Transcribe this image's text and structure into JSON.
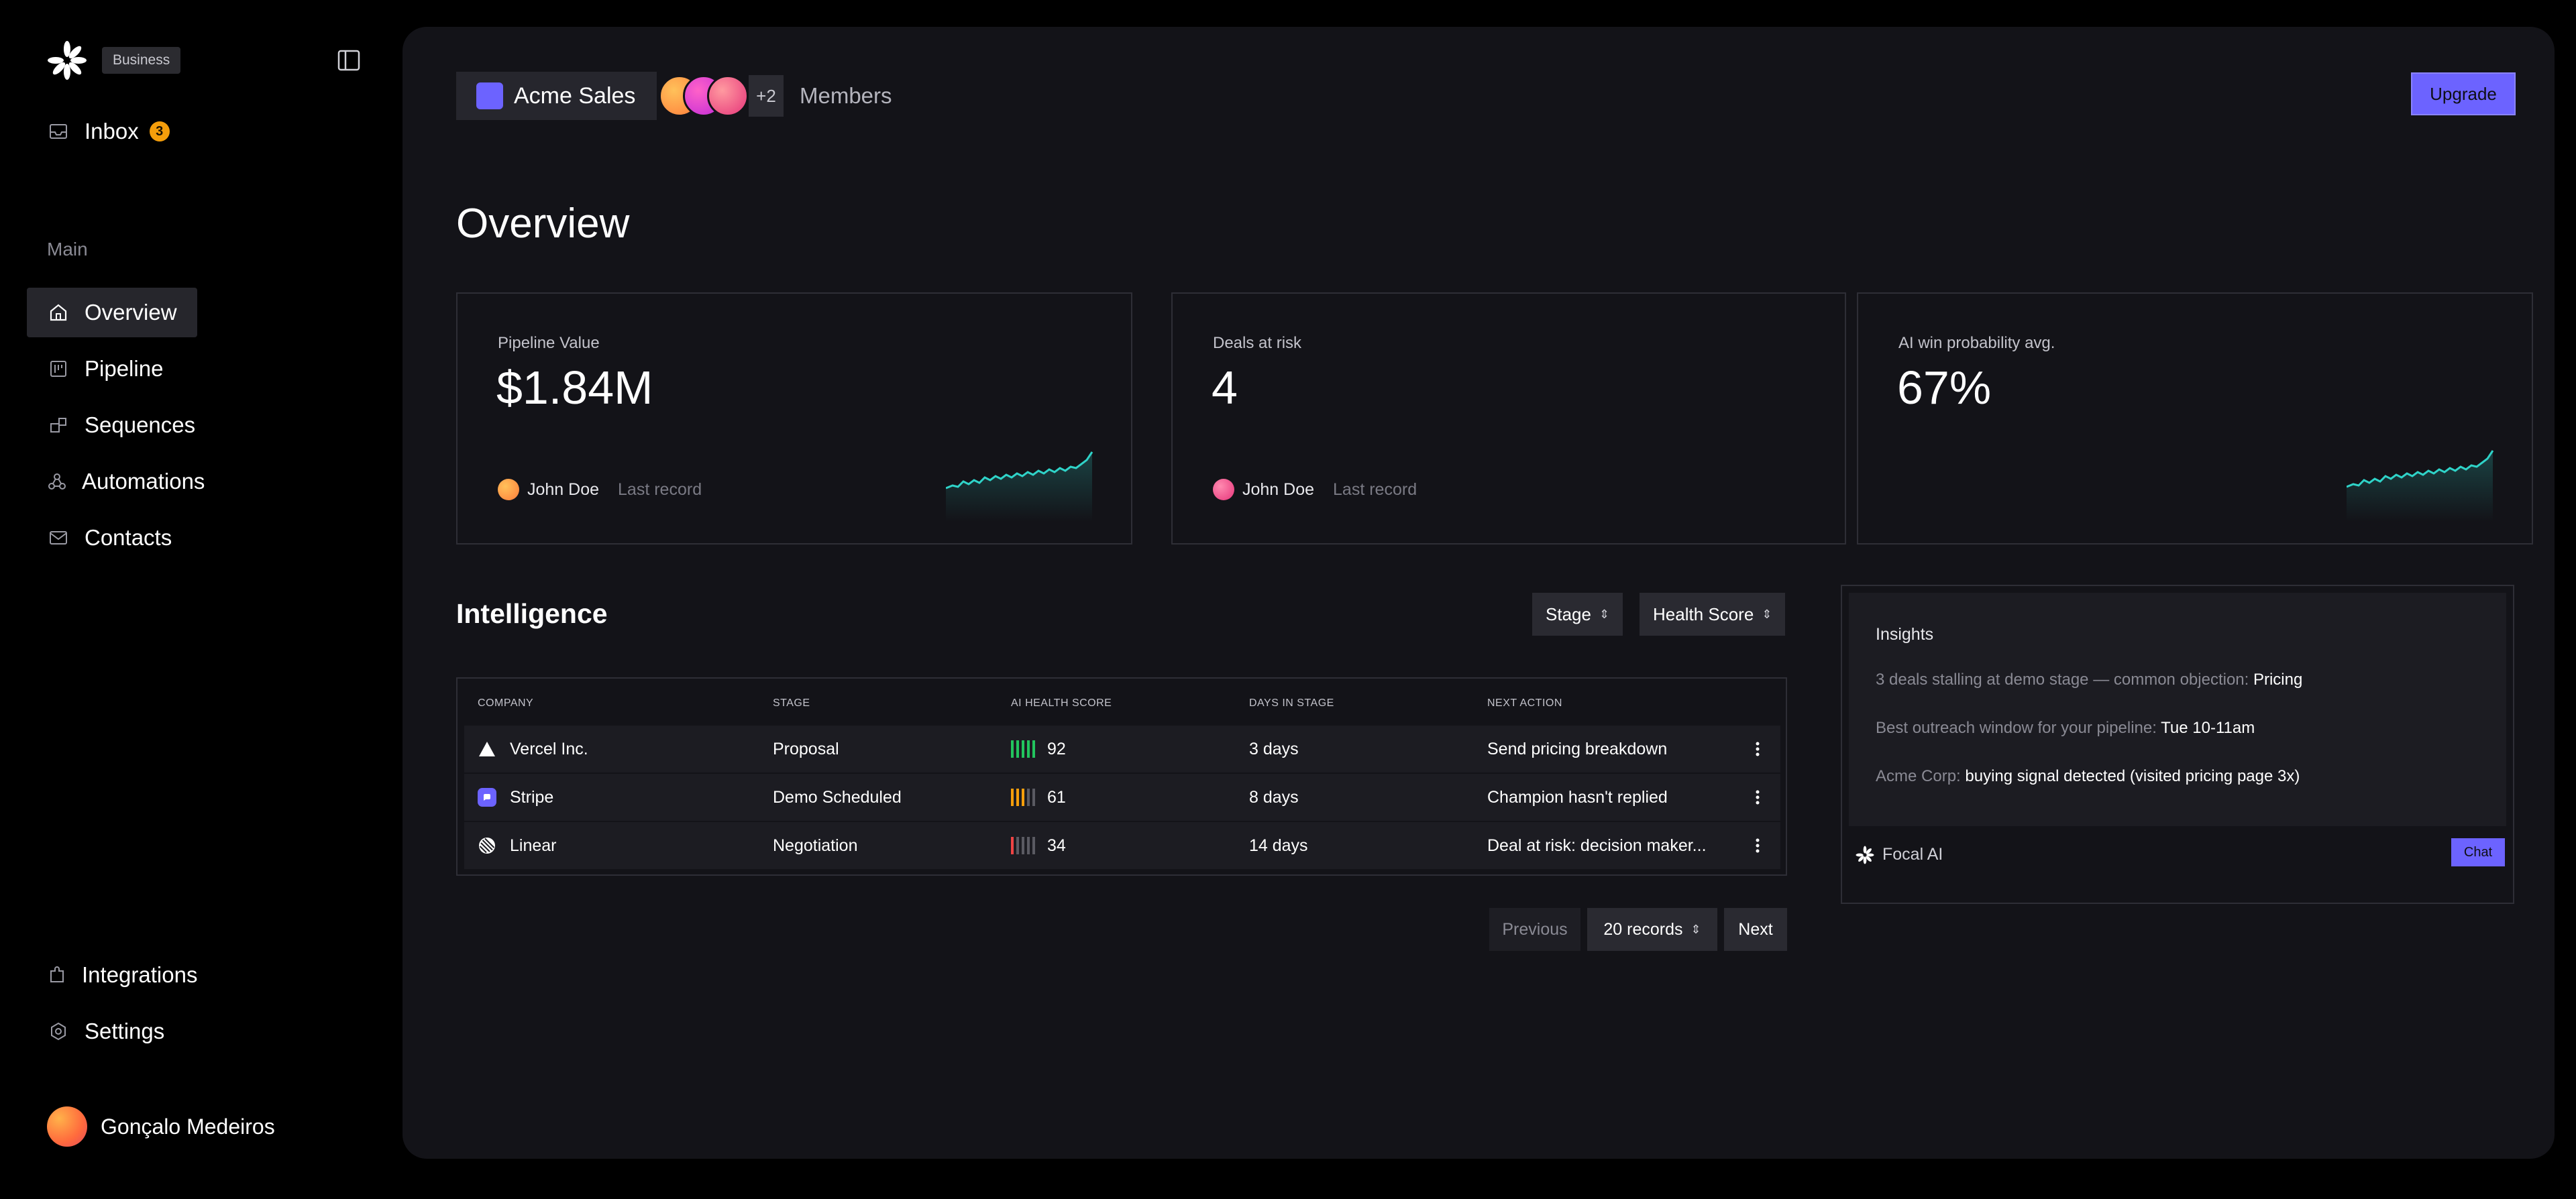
{
  "app": {
    "plan_badge": "Business",
    "brand_color": "#6c63ff",
    "accent_teal": "#2fd3c8"
  },
  "sidebar": {
    "inbox": {
      "label": "Inbox",
      "count": "3",
      "icon": "inbox-icon"
    },
    "section_label": "Main",
    "items": [
      {
        "label": "Overview",
        "icon": "home-icon",
        "active": true
      },
      {
        "label": "Pipeline",
        "icon": "pipeline-icon",
        "active": false
      },
      {
        "label": "Sequences",
        "icon": "sequences-icon",
        "active": false
      },
      {
        "label": "Automations",
        "icon": "automations-icon",
        "active": false
      },
      {
        "label": "Contacts",
        "icon": "contacts-icon",
        "active": false
      }
    ],
    "bottom_items": [
      {
        "label": "Integrations",
        "icon": "puzzle-icon"
      },
      {
        "label": "Settings",
        "icon": "settings-icon"
      }
    ],
    "user": {
      "name": "Gonçalo Medeiros"
    }
  },
  "header": {
    "workspace": "Acme Sales",
    "members_extra": "+2",
    "members_label": "Members",
    "upgrade_label": "Upgrade"
  },
  "overview": {
    "title": "Overview",
    "kpis": [
      {
        "label": "Pipeline Value",
        "value": "$1.84M",
        "owner": "John Doe",
        "meta": "Last record",
        "sparkline": true
      },
      {
        "label": "Deals at risk",
        "value": "4",
        "owner": "John Doe",
        "meta": "Last record",
        "sparkline": false
      },
      {
        "label": "AI win probability avg.",
        "value": "67%",
        "owner": "",
        "meta": "",
        "sparkline": true
      }
    ]
  },
  "intelligence": {
    "title": "Intelligence",
    "filters": {
      "stage": "Stage",
      "health": "Health Score"
    },
    "columns": [
      "COMPANY",
      "STAGE",
      "AI HEALTH SCORE",
      "DAYS IN STAGE",
      "NEXT ACTION"
    ],
    "rows": [
      {
        "company": "Vercel Inc.",
        "stage": "Proposal",
        "score": "92",
        "score_color": "#22c55e",
        "days": "3 days",
        "next_action": "Send pricing breakdown"
      },
      {
        "company": "Stripe",
        "stage": "Demo Scheduled",
        "score": "61",
        "score_color": "#f59e0b",
        "days": "8 days",
        "next_action": "Champion hasn't replied"
      },
      {
        "company": "Linear",
        "stage": "Negotiation",
        "score": "34",
        "score_color": "#ef4444",
        "days": "14 days",
        "next_action": "Deal at risk: decision maker..."
      }
    ],
    "pager": {
      "previous": "Previous",
      "records": "20 records",
      "next": "Next"
    }
  },
  "insights": {
    "title": "Insights",
    "lines": [
      {
        "pre": "3 deals stalling at demo stage — common objection: ",
        "hl": "Pricing"
      },
      {
        "pre": "Best outreach window for your pipeline: ",
        "hl": "Tue 10-11am"
      },
      {
        "pre": "Acme Corp: ",
        "hl": "buying signal detected (visited pricing page 3x)"
      }
    ],
    "assistant": "Focal AI",
    "chat_label": "Chat"
  }
}
